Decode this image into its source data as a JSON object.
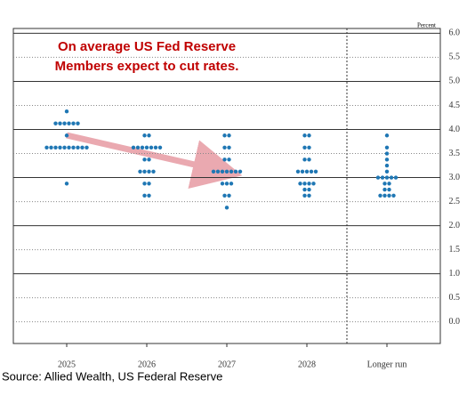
{
  "chart_data": {
    "type": "dot",
    "y_label": "Percent",
    "annotation": [
      "On average US Fed Reserve",
      "Members expect to cut rates."
    ],
    "source": "Source: Allied Wealth, US Federal Reserve",
    "categories": [
      "2025",
      "2026",
      "2027",
      "2028",
      "Longer run"
    ],
    "points": [
      [
        {
          "value": 4.375,
          "count": 1
        },
        {
          "value": 4.125,
          "count": 6
        },
        {
          "value": 3.875,
          "count": 1
        },
        {
          "value": 3.625,
          "count": 10
        },
        {
          "value": 2.875,
          "count": 1
        }
      ],
      [
        {
          "value": 3.875,
          "count": 2
        },
        {
          "value": 3.625,
          "count": 7
        },
        {
          "value": 3.375,
          "count": 2
        },
        {
          "value": 3.125,
          "count": 4
        },
        {
          "value": 2.875,
          "count": 2
        },
        {
          "value": 2.625,
          "count": 2
        }
      ],
      [
        {
          "value": 3.875,
          "count": 2
        },
        {
          "value": 3.625,
          "count": 2
        },
        {
          "value": 3.375,
          "count": 2
        },
        {
          "value": 3.125,
          "count": 7
        },
        {
          "value": 2.875,
          "count": 3
        },
        {
          "value": 2.625,
          "count": 2
        },
        {
          "value": 2.375,
          "count": 1
        }
      ],
      [
        {
          "value": 3.875,
          "count": 2
        },
        {
          "value": 3.625,
          "count": 2
        },
        {
          "value": 3.375,
          "count": 2
        },
        {
          "value": 3.125,
          "count": 5
        },
        {
          "value": 2.875,
          "count": 4
        },
        {
          "value": 2.75,
          "count": 2
        },
        {
          "value": 2.625,
          "count": 2
        }
      ],
      [
        {
          "value": 3.875,
          "count": 1
        },
        {
          "value": 3.625,
          "count": 1
        },
        {
          "value": 3.5,
          "count": 1
        },
        {
          "value": 3.375,
          "count": 1
        },
        {
          "value": 3.25,
          "count": 1
        },
        {
          "value": 3.125,
          "count": 1
        },
        {
          "value": 3.0,
          "count": 5
        },
        {
          "value": 2.875,
          "count": 2
        },
        {
          "value": 2.75,
          "count": 2
        },
        {
          "value": 2.625,
          "count": 4
        }
      ]
    ],
    "color": "#1f77b4",
    "ylim": [
      -0.45,
      6.1
    ],
    "yticks": [
      {
        "value": 6,
        "label": "6.0"
      },
      {
        "value": 5.5,
        "label": "5.5"
      },
      {
        "value": 5,
        "label": "5.0"
      },
      {
        "value": 4.5,
        "label": "4.5"
      },
      {
        "value": 4,
        "label": "4.0"
      },
      {
        "value": 3.5,
        "label": "3.5"
      },
      {
        "value": 3,
        "label": "3.0"
      },
      {
        "value": 2.5,
        "label": "2.5"
      },
      {
        "value": 2,
        "label": "2.0"
      },
      {
        "value": 1.5,
        "label": "1.5"
      },
      {
        "value": 1,
        "label": "1.0"
      },
      {
        "value": 0.5,
        "label": "0.5"
      },
      {
        "value": 0,
        "label": "0.0"
      }
    ],
    "grid": true
  }
}
